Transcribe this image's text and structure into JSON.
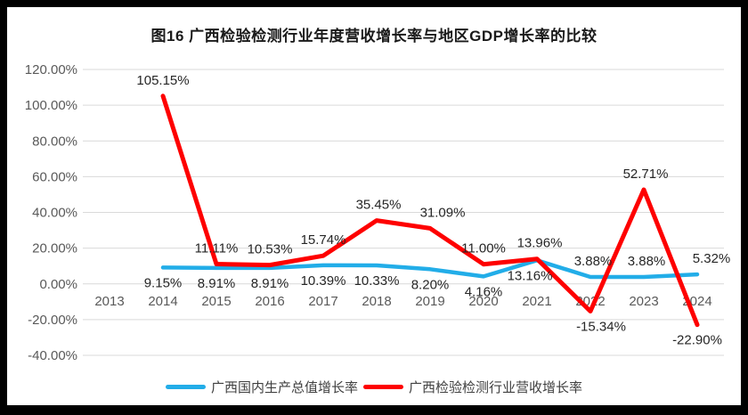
{
  "colors": {
    "frame": "#000000",
    "chart_background": "#FFFFFF",
    "grid": "#D9D9D9",
    "axis_text": "#595959",
    "data_label_text": "#262626",
    "title_text": "#1A1A1A",
    "gdp_series": "#22ADE8",
    "industry_series": "#FE0000"
  },
  "chart_data": {
    "type": "line",
    "title": "图16 广西检验检测行业年度营收增长率与地区GDP增长率的比较",
    "categories": [
      "2013",
      "2014",
      "2015",
      "2016",
      "2017",
      "2018",
      "2019",
      "2020",
      "2021",
      "2022",
      "2023",
      "2024"
    ],
    "xlabel": "",
    "ylabel": "",
    "ylim": [
      -40,
      120
    ],
    "ytick_step": 20,
    "y_ticks": [
      "120.00%",
      "100.00%",
      "80.00%",
      "60.00%",
      "40.00%",
      "20.00%",
      "0.00%",
      "-20.00%",
      "-40.00%"
    ],
    "grid": true,
    "legend_position": "bottom",
    "series": [
      {
        "name": "广西国内生产总值增长率",
        "color": "#22ADE8",
        "line_width": 4.5,
        "values": [
          null,
          9.15,
          8.91,
          8.91,
          10.39,
          10.33,
          8.2,
          4.16,
          13.16,
          3.88,
          3.88,
          5.32
        ],
        "labels": [
          null,
          "9.15%",
          "8.91%",
          "8.91%",
          "10.39%",
          "10.33%",
          "8.20%",
          "4.16%",
          "13.16%",
          "3.88%",
          "3.88%",
          "5.32%"
        ],
        "label_side": [
          null,
          "below",
          "below",
          "below",
          "below",
          "below",
          "below",
          "below",
          "below",
          "above",
          "above",
          "above"
        ],
        "label_dx": [
          0,
          0,
          0,
          0,
          0,
          0,
          0,
          0,
          -8,
          3,
          3,
          16
        ]
      },
      {
        "name": "广西检验检测行业营收增长率",
        "color": "#FE0000",
        "line_width": 5,
        "values": [
          null,
          105.15,
          11.11,
          10.53,
          15.74,
          35.45,
          31.09,
          11.0,
          13.96,
          -15.34,
          52.71,
          -22.9
        ],
        "labels": [
          null,
          "105.15%",
          "11.11%",
          "10.53%",
          "15.74%",
          "35.45%",
          "31.09%",
          "11.00%",
          "13.96%",
          "-15.34%",
          "52.71%",
          "-22.90%"
        ],
        "label_side": [
          null,
          "above",
          "above",
          "above",
          "above",
          "above",
          "above",
          "above",
          "above",
          "below",
          "above",
          "below"
        ],
        "label_dx": [
          0,
          0,
          0,
          0,
          0,
          2,
          14,
          0,
          3,
          12,
          2,
          0
        ]
      }
    ]
  }
}
